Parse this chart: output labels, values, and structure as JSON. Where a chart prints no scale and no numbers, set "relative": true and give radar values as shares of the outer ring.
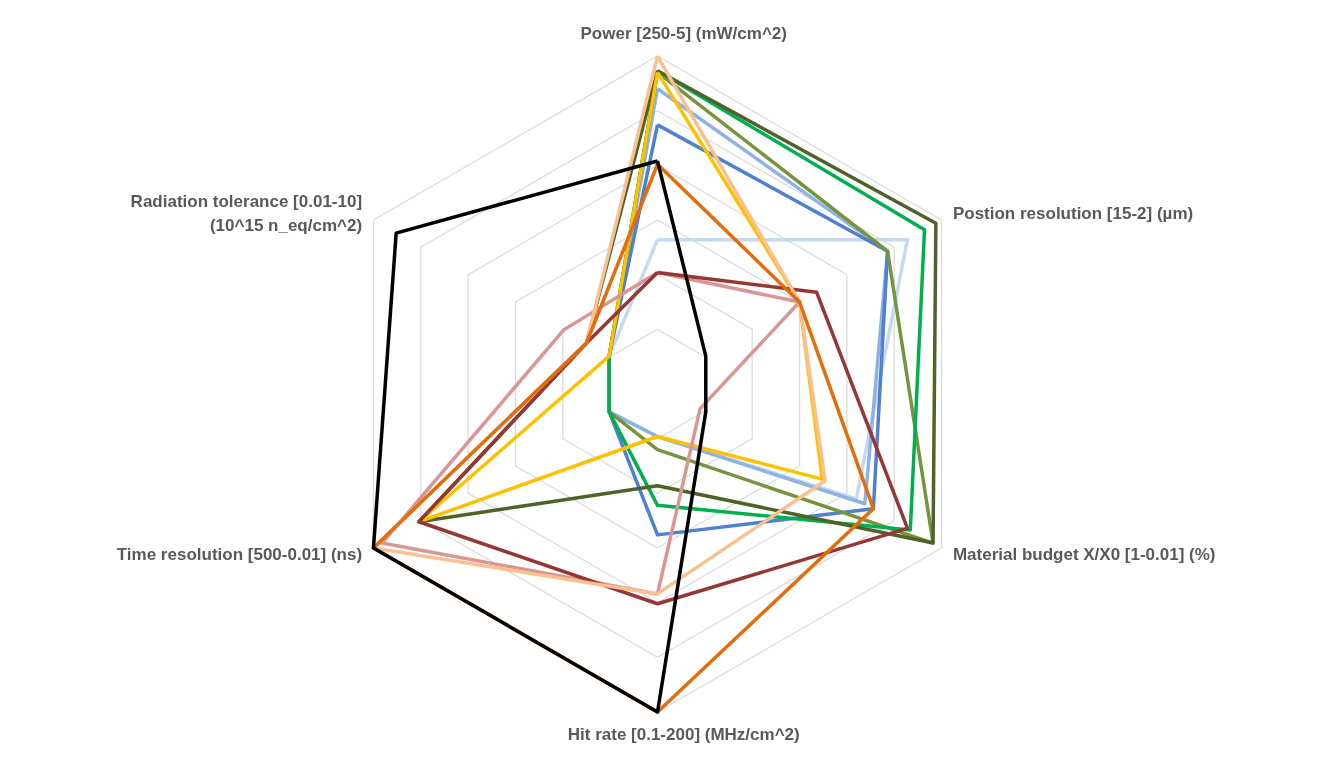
{
  "chart_data": {
    "type": "radar",
    "relative": true,
    "grid": true,
    "marker": "none",
    "line_style": "solid",
    "categories": [
      "Power [250-5] (mW/cm^2)",
      "Postion resolution [15-2] (µm)",
      "Material budget X/X0 [1-0.01] (%)",
      "Hit rate [0.1-200] (MHz/cm^2)",
      "Time resolution [500-0.01] (ns)",
      "Radiation tolerance [0.01-10]\n(10^15 n_eq/cm^2)"
    ],
    "series": [
      {
        "color": "#c6d9f1",
        "values": [
          0.44,
          0.88,
          0.7,
          0.16,
          0.17,
          0.17
        ]
      },
      {
        "color": "#8db3e2",
        "values": [
          0.9,
          0.81,
          0.73,
          0.16,
          0.17,
          0.17
        ]
      },
      {
        "color": "#4f81d0",
        "values": [
          0.79,
          0.81,
          0.76,
          0.46,
          0.17,
          0.17
        ]
      },
      {
        "color": "#77933c",
        "values": [
          0.95,
          0.81,
          0.97,
          0.2,
          0.17,
          0.17
        ]
      },
      {
        "color": "#00b050",
        "values": [
          0.955,
          0.94,
          0.89,
          0.37,
          0.17,
          0.17
        ]
      },
      {
        "color": "#4f6228",
        "values": [
          0.955,
          0.98,
          0.97,
          0.31,
          0.84,
          0.25
        ]
      },
      {
        "color": "#ffc000",
        "values": [
          0.95,
          0.5,
          0.58,
          0.16,
          0.84,
          0.17
        ]
      },
      {
        "color": "#d99694",
        "values": [
          0.34,
          0.5,
          0.15,
          0.64,
          0.97,
          0.33
        ]
      },
      {
        "color": "#953735",
        "values": [
          0.34,
          0.56,
          0.88,
          0.67,
          0.84,
          0.25
        ]
      },
      {
        "color": "#fac090",
        "values": [
          1.0,
          0.5,
          0.59,
          0.64,
          1.0,
          0.25
        ]
      },
      {
        "color": "#e46c0a",
        "values": [
          0.67,
          0.5,
          0.76,
          1.0,
          1.0,
          0.25
        ]
      },
      {
        "color": "#000000",
        "values": [
          0.68,
          0.17,
          0.17,
          1.0,
          1.0,
          0.92
        ]
      }
    ]
  }
}
